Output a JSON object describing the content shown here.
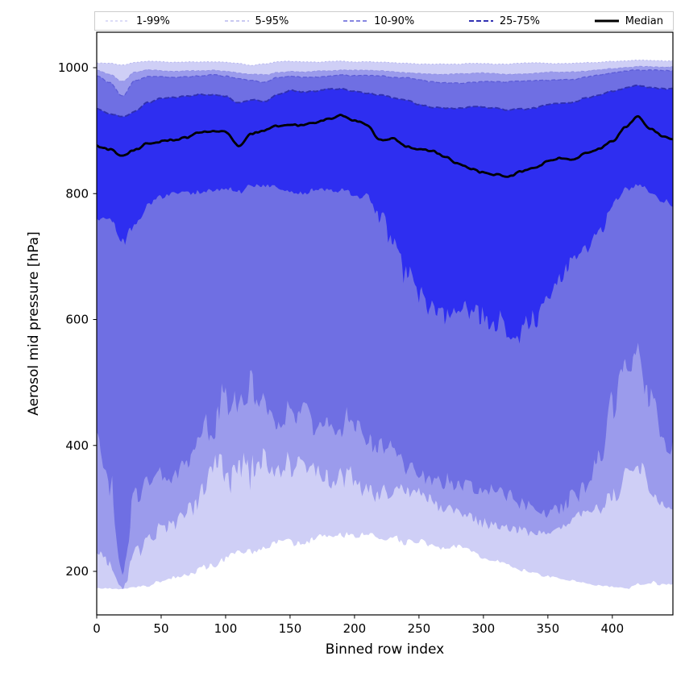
{
  "figure": {
    "background": "#ffffff"
  },
  "legend": {
    "items": [
      {
        "label": "1-99%",
        "color": "#b9b9ef",
        "dash": "3 3",
        "width": 1.0
      },
      {
        "label": "5-95%",
        "color": "#9393e6",
        "dash": "4 3",
        "width": 1.0
      },
      {
        "label": "10-90%",
        "color": "#5e5ed7",
        "dash": "5 3",
        "width": 1.4
      },
      {
        "label": "25-75%",
        "color": "#3232b2",
        "dash": "6 3",
        "width": 2.0
      },
      {
        "label": "Median",
        "color": "#000000",
        "dash": "",
        "width": 3.0
      }
    ]
  },
  "chart_data": {
    "type": "area",
    "subtype": "percentile-fan-chart",
    "title": "",
    "xlabel": "Binned row index",
    "ylabel": "Aerosol mid pressure [hPa]",
    "xticks": [
      0,
      50,
      100,
      150,
      200,
      250,
      300,
      350,
      400
    ],
    "yticks": [
      200,
      400,
      600,
      800,
      1000
    ],
    "xlim": [
      0,
      447
    ],
    "ylim": [
      131,
      1056
    ],
    "grid": false,
    "legend_position": "top-outside-horizontal",
    "band_fills": {
      "p1_p99": "#cfcff6",
      "p5_p95": "#9b9bec",
      "p10_p90": "#6f6fe3",
      "p25_p75": "#2e2ef0"
    },
    "line_styles": {
      "p99": {
        "color": "#b4b4ee",
        "dash": "2 2.6",
        "width": 1.0
      },
      "p95": {
        "color": "#9090e4",
        "dash": "4 2.6",
        "width": 1.0
      },
      "p90": {
        "color": "#5c5cd6",
        "dash": "5 2.6",
        "width": 1.3
      },
      "p75": {
        "color": "#3030b0",
        "dash": "6.5 2.8",
        "width": 1.9
      },
      "median": {
        "color": "#000000",
        "dash": "",
        "width": 2.8
      }
    },
    "x_anchors": [
      0,
      10,
      20,
      30,
      40,
      50,
      60,
      70,
      80,
      90,
      100,
      110,
      120,
      130,
      140,
      150,
      160,
      170,
      180,
      190,
      200,
      210,
      220,
      230,
      240,
      250,
      260,
      270,
      280,
      290,
      300,
      310,
      320,
      330,
      340,
      350,
      360,
      370,
      380,
      390,
      400,
      410,
      420,
      430,
      440,
      447
    ],
    "series": {
      "p1": {
        "values": [
          172,
          172,
          172,
          174,
          178,
          185,
          192,
          198,
          205,
          212,
          220,
          228,
          232,
          238,
          242,
          246,
          249,
          251,
          253,
          255,
          256,
          256,
          255,
          254,
          252,
          248,
          244,
          240,
          235,
          230,
          224,
          218,
          212,
          206,
          200,
          194,
          189,
          184,
          180,
          177,
          175,
          174,
          178,
          182,
          180,
          178
        ],
        "amp": [
          2,
          2,
          3,
          4,
          6,
          8,
          9,
          10,
          11,
          12,
          13,
          13,
          13,
          13,
          13,
          13,
          12,
          12,
          12,
          12,
          12,
          12,
          11,
          11,
          10,
          10,
          9,
          9,
          8,
          8,
          7,
          7,
          6,
          6,
          5,
          5,
          4,
          4,
          3,
          3,
          3,
          5,
          7,
          7,
          5,
          4
        ],
        "jagged": true
      },
      "p5": {
        "values": [
          225,
          210,
          178,
          240,
          262,
          275,
          286,
          296,
          320,
          360,
          380,
          360,
          380,
          360,
          345,
          350,
          355,
          350,
          355,
          350,
          345,
          340,
          335,
          330,
          322,
          315,
          308,
          302,
          296,
          290,
          285,
          280,
          275,
          270,
          265,
          262,
          268,
          275,
          285,
          295,
          315,
          350,
          365,
          330,
          310,
          305
        ],
        "amp": [
          18,
          18,
          12,
          24,
          28,
          30,
          32,
          35,
          45,
          60,
          70,
          60,
          65,
          55,
          40,
          40,
          40,
          40,
          40,
          40,
          35,
          32,
          30,
          28,
          26,
          24,
          22,
          21,
          20,
          19,
          18,
          17,
          16,
          15,
          15,
          15,
          16,
          18,
          20,
          22,
          28,
          35,
          38,
          30,
          24,
          20
        ],
        "jagged": true
      },
      "p10": {
        "values": [
          400,
          330,
          185,
          310,
          335,
          350,
          360,
          380,
          420,
          445,
          470,
          450,
          470,
          445,
          425,
          435,
          445,
          435,
          445,
          435,
          425,
          415,
          405,
          392,
          375,
          362,
          352,
          346,
          340,
          335,
          330,
          325,
          318,
          310,
          300,
          292,
          310,
          330,
          342,
          365,
          430,
          520,
          555,
          480,
          430,
          415
        ],
        "amp": [
          40,
          55,
          25,
          40,
          35,
          30,
          30,
          35,
          45,
          55,
          60,
          55,
          60,
          55,
          45,
          45,
          45,
          45,
          45,
          45,
          40,
          38,
          35,
          32,
          30,
          28,
          26,
          25,
          24,
          23,
          22,
          22,
          22,
          22,
          22,
          25,
          30,
          32,
          35,
          40,
          60,
          70,
          60,
          50,
          40,
          35
        ],
        "jagged": true
      },
      "p25": {
        "values": [
          765,
          758,
          722,
          748,
          782,
          795,
          800,
          803,
          806,
          806,
          808,
          802,
          810,
          812,
          810,
          806,
          804,
          806,
          808,
          806,
          800,
          792,
          762,
          712,
          690,
          668,
          648,
          625,
          608,
          598,
          592,
          588,
          585,
          590,
          600,
          640,
          672,
          690,
          705,
          745,
          782,
          805,
          810,
          800,
          788,
          780
        ],
        "amp": [
          10,
          12,
          18,
          12,
          8,
          8,
          8,
          8,
          8,
          8,
          8,
          8,
          8,
          8,
          8,
          8,
          8,
          8,
          8,
          8,
          10,
          14,
          25,
          35,
          40,
          45,
          48,
          50,
          50,
          48,
          45,
          45,
          45,
          42,
          40,
          38,
          30,
          25,
          22,
          18,
          14,
          10,
          8,
          8,
          10,
          10
        ],
        "jagged": true
      },
      "median": {
        "values": [
          876,
          871,
          860,
          868,
          879,
          882,
          885,
          890,
          897,
          901,
          897,
          874,
          893,
          898,
          906,
          910,
          907,
          912,
          919,
          923,
          915,
          907,
          884,
          886,
          874,
          869,
          866,
          856,
          847,
          840,
          836,
          833,
          828,
          836,
          842,
          853,
          858,
          854,
          864,
          870,
          880,
          903,
          921,
          901,
          890,
          886
        ],
        "amp": 4.0,
        "jagged": false
      },
      "p75": {
        "values": [
          936,
          928,
          921,
          931,
          944,
          950,
          951,
          953,
          957,
          958,
          955,
          945,
          950,
          947,
          958,
          965,
          963,
          965,
          967,
          968,
          964,
          960,
          957,
          952,
          948,
          941,
          938,
          936,
          936,
          938,
          937,
          937,
          934,
          936,
          937,
          941,
          943,
          944,
          952,
          958,
          963,
          968,
          972,
          968,
          966,
          965
        ],
        "amp": 3.2,
        "jagged": false
      },
      "p90": {
        "values": [
          988,
          976,
          955,
          980,
          986,
          987,
          986,
          987,
          988,
          989,
          987,
          983,
          980,
          977,
          984,
          986,
          985,
          986,
          987,
          988,
          987,
          986,
          986,
          984,
          983,
          980,
          978,
          977,
          977,
          978,
          979,
          978,
          977,
          978,
          979,
          980,
          981,
          982,
          985,
          988,
          991,
          994,
          996,
          996,
          996,
          996
        ],
        "amp": 2.2,
        "jagged": false
      },
      "p95": {
        "values": [
          997,
          990,
          978,
          992,
          996,
          996,
          995,
          996,
          996,
          996,
          995,
          992,
          990,
          989,
          993,
          995,
          994,
          995,
          995,
          996,
          995,
          995,
          994,
          993,
          992,
          991,
          990,
          990,
          990,
          991,
          991,
          990,
          990,
          991,
          991,
          992,
          992,
          993,
          995,
          997,
          999,
          1001,
          1002,
          1002,
          1002,
          1002
        ],
        "amp": 1.8,
        "jagged": false
      },
      "p99": {
        "values": [
          1008,
          1007,
          1004,
          1008,
          1010,
          1010,
          1009,
          1010,
          1010,
          1010,
          1009,
          1007,
          1004,
          1006,
          1009,
          1010,
          1009,
          1009,
          1010,
          1010,
          1009,
          1009,
          1008,
          1008,
          1007,
          1006,
          1006,
          1006,
          1006,
          1007,
          1007,
          1006,
          1006,
          1007,
          1007,
          1007,
          1007,
          1007,
          1008,
          1009,
          1010,
          1011,
          1012,
          1012,
          1011,
          1011
        ],
        "amp": 1.3,
        "jagged": false
      }
    }
  }
}
